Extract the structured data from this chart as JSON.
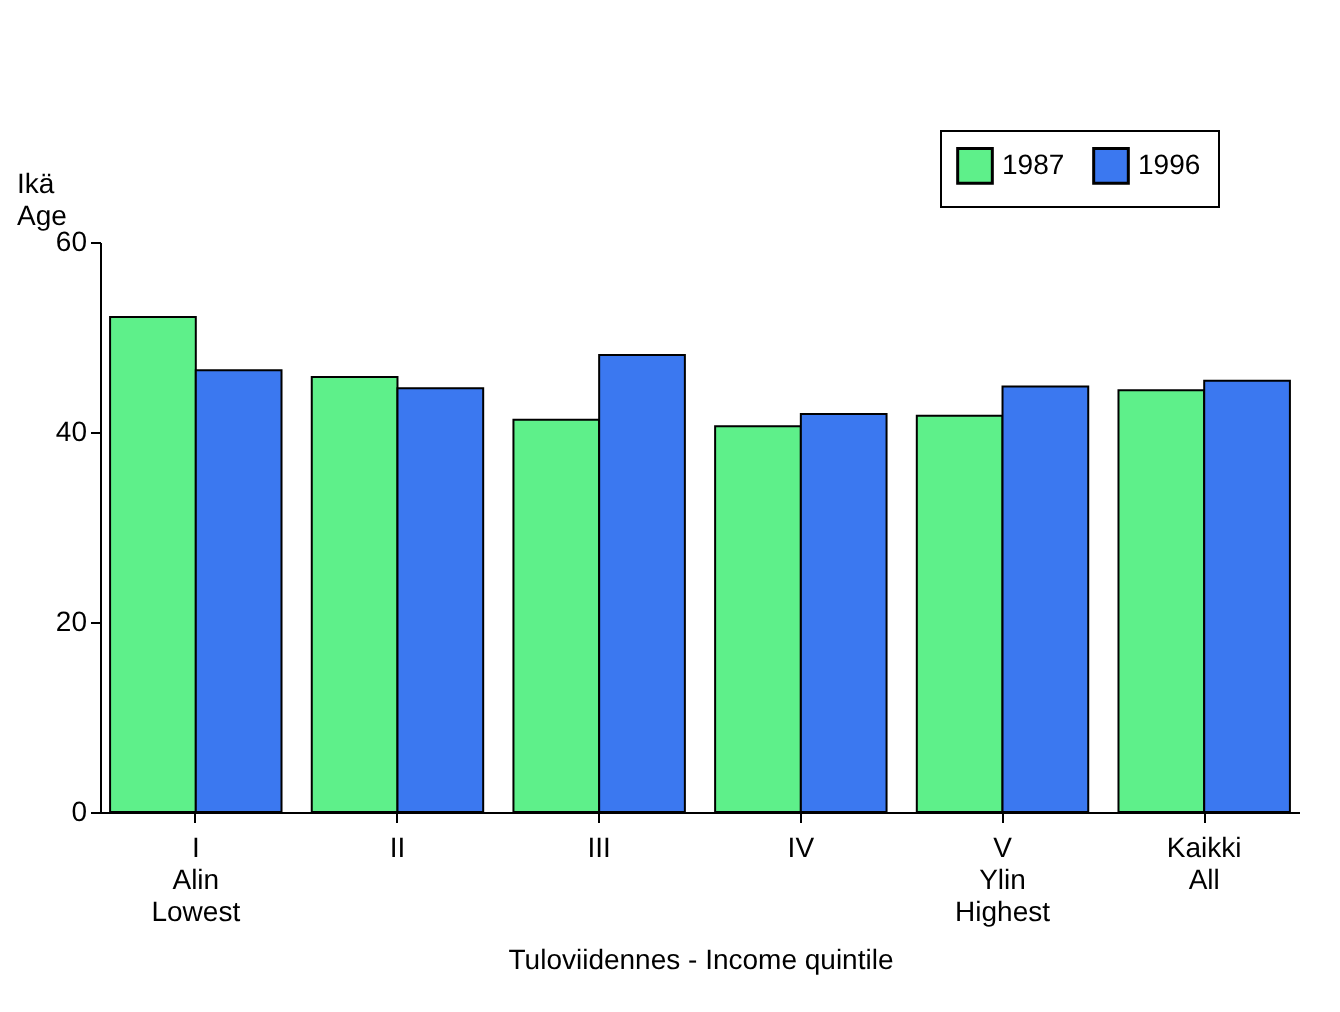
{
  "chart_data": {
    "type": "bar",
    "ylabel": "Ikä\nAge",
    "xlabel": "Tuloviidennes - Income quintile",
    "categories": [
      "I\nAlin\nLowest",
      "II",
      "III",
      "IV",
      "V\nYlin\nHighest",
      "Kaikki\nAll"
    ],
    "series": [
      {
        "name": "1987",
        "color": "#5ef08a",
        "values": [
          52.1,
          45.8,
          41.3,
          40.6,
          41.7,
          44.4
        ]
      },
      {
        "name": "1996",
        "color": "#3b78f0",
        "values": [
          46.5,
          44.6,
          48.1,
          41.9,
          44.8,
          45.4
        ]
      }
    ],
    "ylim": [
      0,
      60
    ],
    "yticks": [
      0,
      20,
      40,
      60
    ],
    "grid": false,
    "legend": "top right"
  }
}
